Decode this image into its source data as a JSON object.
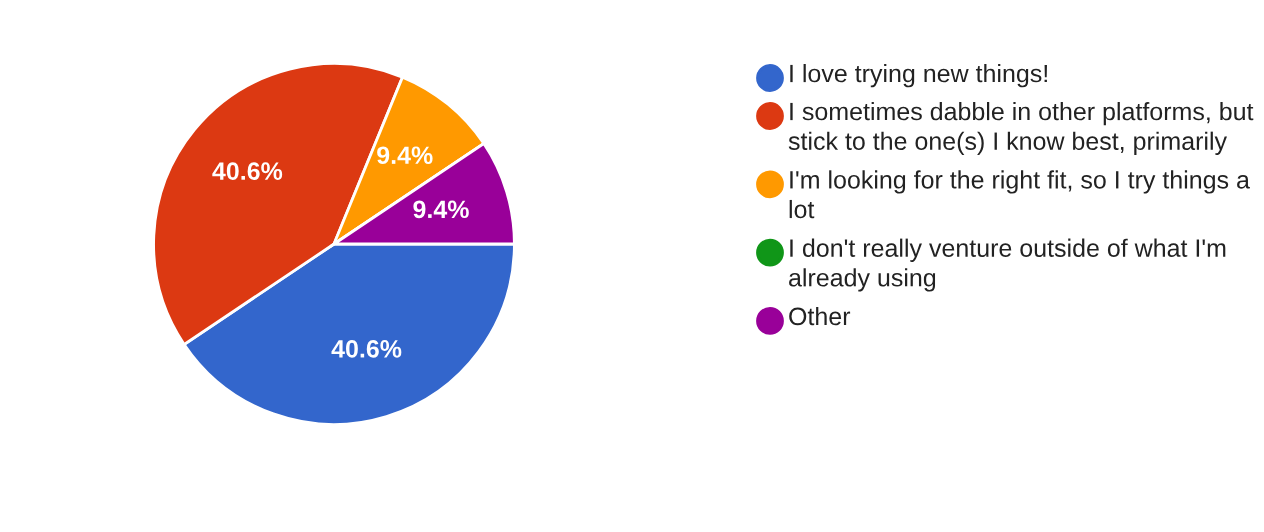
{
  "chart_data": {
    "type": "pie",
    "categories": [
      "I love trying new things!",
      "I sometimes dabble in other platforms, but stick to the one(s) I know best, primarily",
      "I'm looking for the right fit, so I try things a lot",
      "I don't really venture outside of what I'm already using",
      "Other"
    ],
    "values": [
      40.6,
      40.6,
      9.4,
      0,
      9.4
    ],
    "colors": [
      "#3366cc",
      "#dc3912",
      "#ff9900",
      "#109618",
      "#990099"
    ],
    "value_labels": [
      "40.6%",
      "40.6%",
      "9.4%",
      null,
      "9.4%"
    ],
    "legend": "right"
  }
}
